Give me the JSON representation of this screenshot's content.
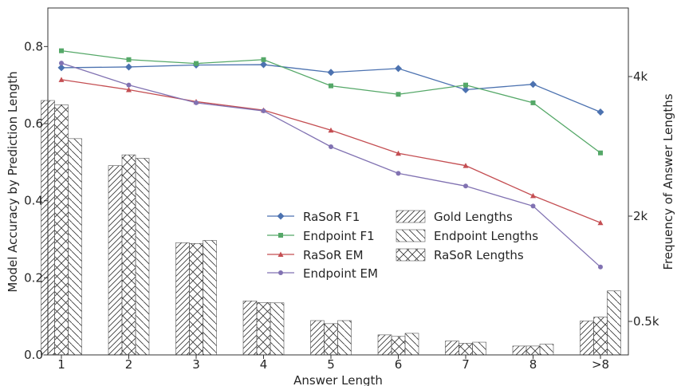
{
  "chart_data": {
    "type": "bar+line",
    "categories": [
      "1",
      "2",
      "3",
      "4",
      "5",
      "6",
      "7",
      "8",
      ">8"
    ],
    "xlabel": "Answer Length",
    "ylabel_left": "Model Accuracy by Prediction Length",
    "ylabel_right": "Frequency of Answer Lengths",
    "ylim_left": [
      0.0,
      0.9
    ],
    "left_ticks": [
      0.0,
      0.2,
      0.4,
      0.6,
      0.8
    ],
    "left_tick_labels": [
      "0.0",
      "0.2",
      "0.4",
      "0.6",
      "0.8"
    ],
    "right_tick_labels": [
      "4k",
      "2k",
      "0.5k"
    ],
    "grid": false,
    "legend_position": "center",
    "line_series": [
      {
        "name": "RaSoR F1",
        "color": "#4c72b0",
        "marker": "diamond",
        "values": [
          0.745,
          0.747,
          0.752,
          0.753,
          0.733,
          0.743,
          0.688,
          0.702,
          0.63
        ]
      },
      {
        "name": "Endpoint F1",
        "color": "#55a868",
        "marker": "square",
        "values": [
          0.789,
          0.766,
          0.756,
          0.766,
          0.698,
          0.676,
          0.7,
          0.654,
          0.524
        ]
      },
      {
        "name": "RaSoR EM",
        "color": "#c44e52",
        "marker": "triangle",
        "values": [
          0.714,
          0.688,
          0.657,
          0.635,
          0.583,
          0.523,
          0.491,
          0.413,
          0.343
        ]
      },
      {
        "name": "Endpoint EM",
        "color": "#8172b2",
        "marker": "circle",
        "values": [
          0.757,
          0.7,
          0.654,
          0.633,
          0.54,
          0.471,
          0.438,
          0.386,
          0.228
        ]
      }
    ],
    "bar_series": [
      {
        "name": "Gold Lengths",
        "hatch": "////",
        "values": [
          0.66,
          0.491,
          0.291,
          0.14,
          0.089,
          0.052,
          0.036,
          0.023,
          0.088
        ]
      },
      {
        "name": "Endpoint Lengths",
        "hatch": "\\\\\\\\",
        "values": [
          0.561,
          0.51,
          0.297,
          0.135,
          0.089,
          0.056,
          0.033,
          0.028,
          0.166
        ]
      },
      {
        "name": "RaSoR Lengths",
        "hatch": "xx",
        "values": [
          0.649,
          0.519,
          0.289,
          0.136,
          0.081,
          0.048,
          0.03,
          0.023,
          0.098
        ]
      }
    ]
  }
}
